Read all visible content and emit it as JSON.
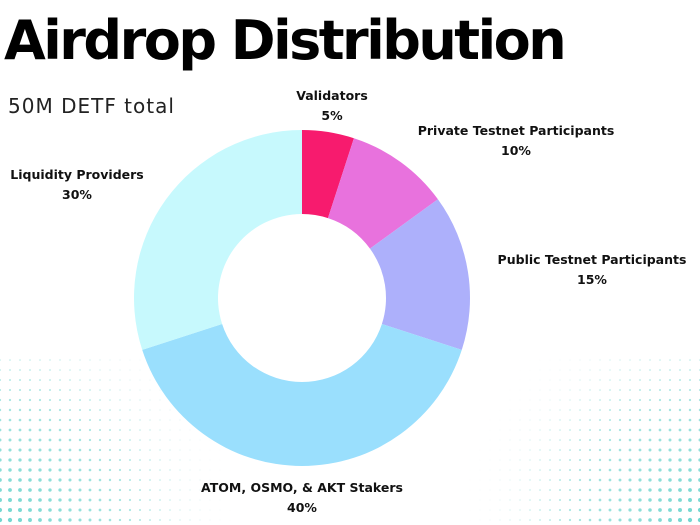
{
  "header": {
    "title": "Airdrop Distribution",
    "subtitle": "50M DETF total"
  },
  "colors": {
    "validators": "#f71b6e",
    "private_testnet": "#e872dd",
    "public_testnet": "#adb0fb",
    "stakers": "#9adffd",
    "liquidity": "#c7f9fd",
    "dots": "#3fc9c0"
  },
  "chart_data": {
    "type": "pie",
    "subtype": "donut",
    "title": "Airdrop Distribution",
    "subtitle": "50M DETF total",
    "slices": [
      {
        "label": "Validators",
        "value": 5,
        "value_label": "5%",
        "color": "#f71b6e"
      },
      {
        "label": "Private Testnet Participants",
        "value": 10,
        "value_label": "10%",
        "color": "#e872dd"
      },
      {
        "label": "Public Testnet Participants",
        "value": 15,
        "value_label": "15%",
        "color": "#adb0fb"
      },
      {
        "label": "ATOM, OSMO, & AKT Stakers",
        "value": 40,
        "value_label": "40%",
        "color": "#9adffd"
      },
      {
        "label": "Liquidity Providers",
        "value": 30,
        "value_label": "30%",
        "color": "#c7f9fd"
      }
    ]
  }
}
